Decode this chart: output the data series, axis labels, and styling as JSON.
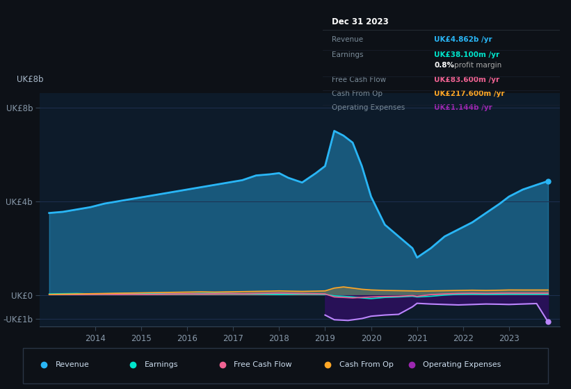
{
  "bg_color": "#0d1117",
  "chart_bg": "#0d1b2a",
  "grid_color": "#1e3050",
  "years": [
    2013.0,
    2013.3,
    2013.6,
    2013.9,
    2014.2,
    2014.5,
    2014.8,
    2015.1,
    2015.4,
    2015.7,
    2016.0,
    2016.3,
    2016.6,
    2016.9,
    2017.2,
    2017.5,
    2017.8,
    2018.0,
    2018.2,
    2018.5,
    2018.8,
    2019.0,
    2019.2,
    2019.4,
    2019.6,
    2019.8,
    2020.0,
    2020.3,
    2020.6,
    2020.9,
    2021.0,
    2021.3,
    2021.6,
    2021.9,
    2022.2,
    2022.5,
    2022.8,
    2023.0,
    2023.3,
    2023.6,
    2023.85
  ],
  "revenue": [
    3.5,
    3.55,
    3.65,
    3.75,
    3.9,
    4.0,
    4.1,
    4.2,
    4.3,
    4.4,
    4.5,
    4.6,
    4.7,
    4.8,
    4.9,
    5.1,
    5.15,
    5.2,
    5.0,
    4.8,
    5.2,
    5.5,
    7.0,
    6.8,
    6.5,
    5.5,
    4.2,
    3.0,
    2.5,
    2.0,
    1.6,
    2.0,
    2.5,
    2.8,
    3.1,
    3.5,
    3.9,
    4.2,
    4.5,
    4.7,
    4.862
  ],
  "earnings": [
    0.05,
    0.06,
    0.07,
    0.05,
    0.06,
    0.07,
    0.08,
    0.07,
    0.06,
    0.05,
    0.06,
    0.07,
    0.08,
    0.07,
    0.06,
    0.05,
    0.04,
    0.03,
    0.04,
    0.05,
    0.04,
    0.03,
    -0.03,
    -0.05,
    -0.08,
    -0.12,
    -0.15,
    -0.1,
    -0.08,
    -0.05,
    -0.08,
    -0.05,
    0.0,
    0.03,
    0.04,
    0.03,
    0.035,
    0.04,
    0.038,
    0.038,
    0.0381
  ],
  "free_cash_flow": [
    0.02,
    0.03,
    0.02,
    0.03,
    0.04,
    0.03,
    0.04,
    0.03,
    0.04,
    0.05,
    0.06,
    0.05,
    0.06,
    0.07,
    0.06,
    0.07,
    0.08,
    0.09,
    0.08,
    0.07,
    0.06,
    0.05,
    -0.08,
    -0.1,
    -0.12,
    -0.1,
    -0.08,
    -0.06,
    -0.05,
    -0.02,
    -0.05,
    0.02,
    0.05,
    0.07,
    0.08,
    0.07,
    0.08,
    0.085,
    0.083,
    0.083,
    0.0836
  ],
  "cash_from_op": [
    0.03,
    0.04,
    0.05,
    0.06,
    0.07,
    0.08,
    0.09,
    0.1,
    0.11,
    0.12,
    0.13,
    0.14,
    0.13,
    0.14,
    0.15,
    0.16,
    0.17,
    0.18,
    0.17,
    0.16,
    0.17,
    0.18,
    0.3,
    0.35,
    0.3,
    0.25,
    0.22,
    0.2,
    0.19,
    0.18,
    0.17,
    0.18,
    0.19,
    0.2,
    0.21,
    0.2,
    0.21,
    0.22,
    0.218,
    0.218,
    0.2176
  ],
  "opex_x": [
    2019.0,
    2019.2,
    2019.5,
    2019.8,
    2020.0,
    2020.3,
    2020.6,
    2020.9,
    2021.0,
    2021.3,
    2021.6,
    2021.9,
    2022.2,
    2022.5,
    2022.8,
    2023.0,
    2023.3,
    2023.6,
    2023.85
  ],
  "opex_y": [
    -0.85,
    -1.05,
    -1.08,
    -1.0,
    -0.9,
    -0.85,
    -0.82,
    -0.5,
    -0.35,
    -0.38,
    -0.4,
    -0.42,
    -0.4,
    -0.38,
    -0.39,
    -0.4,
    -0.38,
    -0.36,
    -1.144
  ],
  "revenue_color": "#29b6f6",
  "earnings_color": "#00e5cc",
  "fcf_color": "#f06292",
  "cashop_color": "#ffa726",
  "opex_line_color": "#bb86fc",
  "opex_fill_color": "#2d1060",
  "xlim": [
    2012.8,
    2024.1
  ],
  "ylim": [
    -1.35,
    8.6
  ],
  "ytick_vals": [
    -1,
    0,
    4,
    8
  ],
  "ytick_labels": [
    "-UK£1b",
    "UK£0",
    "UK£4b",
    "UK£8b"
  ],
  "xtick_vals": [
    2014,
    2015,
    2016,
    2017,
    2018,
    2019,
    2020,
    2021,
    2022,
    2023
  ],
  "info_title": "Dec 31 2023",
  "info_rows": [
    {
      "label": "Revenue",
      "value": "UK£4.862b /yr",
      "color": "#29b6f6"
    },
    {
      "label": "Earnings",
      "value": "UK£38.100m /yr",
      "color": "#00e5cc"
    },
    {
      "label": "",
      "value": "0.8% profit margin",
      "color": "#ffffff"
    },
    {
      "label": "Free Cash Flow",
      "value": "UK£83.600m /yr",
      "color": "#f06292"
    },
    {
      "label": "Cash From Op",
      "value": "UK£217.600m /yr",
      "color": "#ffa726"
    },
    {
      "label": "Operating Expenses",
      "value": "UK£1.144b /yr",
      "color": "#9c27b0"
    }
  ],
  "legend_items": [
    {
      "label": "Revenue",
      "color": "#29b6f6"
    },
    {
      "label": "Earnings",
      "color": "#00e5cc"
    },
    {
      "label": "Free Cash Flow",
      "color": "#f06292"
    },
    {
      "label": "Cash From Op",
      "color": "#ffa726"
    },
    {
      "label": "Operating Expenses",
      "color": "#9c27b0"
    }
  ]
}
